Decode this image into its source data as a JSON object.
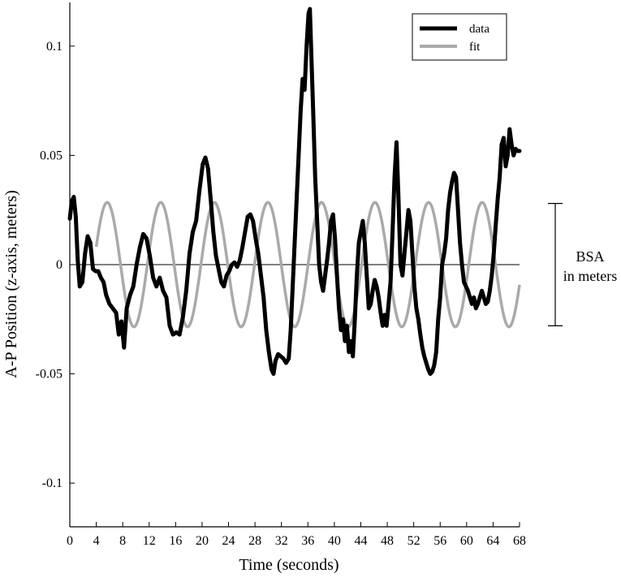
{
  "chart_data": {
    "type": "line",
    "title": "",
    "xlabel": "Time (seconds)",
    "ylabel": "A-P Position (z-axis, meters)",
    "xlim": [
      0,
      68
    ],
    "ylim": [
      -0.12,
      0.12
    ],
    "x_ticks": [
      0,
      4,
      8,
      12,
      16,
      20,
      24,
      28,
      32,
      36,
      40,
      44,
      48,
      52,
      56,
      60,
      64,
      68
    ],
    "x_tick_labels": [
      "0",
      "4",
      "8",
      "12",
      "16",
      "20",
      "24",
      "28",
      "32",
      "36",
      "40",
      "44",
      "48",
      "52",
      "56",
      "60",
      "64",
      "68"
    ],
    "y_ticks": [
      -0.1,
      -0.05,
      0,
      0.05,
      0.1
    ],
    "y_tick_labels": [
      "-0.1",
      "-0.05",
      "0",
      "0.05",
      "0.1"
    ],
    "grid": false,
    "zero_line": true,
    "legend": {
      "placement": "top-right",
      "entries": [
        "data",
        "fit"
      ]
    },
    "series": [
      {
        "name": "data",
        "color": "#000000",
        "points": [
          [
            0,
            0.021
          ],
          [
            0.3,
            0.029
          ],
          [
            0.6,
            0.031
          ],
          [
            0.9,
            0.022
          ],
          [
            1.2,
            0.002
          ],
          [
            1.5,
            -0.01
          ],
          [
            1.9,
            -0.008
          ],
          [
            2.3,
            0.005
          ],
          [
            2.7,
            0.013
          ],
          [
            3.1,
            0.01
          ],
          [
            3.5,
            -0.002
          ],
          [
            3.9,
            -0.003
          ],
          [
            4.3,
            -0.003
          ],
          [
            4.7,
            -0.006
          ],
          [
            5.1,
            -0.008
          ],
          [
            5.5,
            -0.014
          ],
          [
            6.0,
            -0.018
          ],
          [
            6.5,
            -0.02
          ],
          [
            7.0,
            -0.022
          ],
          [
            7.4,
            -0.032
          ],
          [
            7.8,
            -0.026
          ],
          [
            8.2,
            -0.038
          ],
          [
            8.6,
            -0.02
          ],
          [
            9.1,
            -0.014
          ],
          [
            9.6,
            -0.01
          ],
          [
            10.1,
            0.0
          ],
          [
            10.6,
            0.008
          ],
          [
            11.1,
            0.014
          ],
          [
            11.6,
            0.012
          ],
          [
            12.1,
            0.004
          ],
          [
            12.6,
            -0.006
          ],
          [
            13.1,
            -0.01
          ],
          [
            13.6,
            -0.006
          ],
          [
            14.1,
            -0.012
          ],
          [
            14.6,
            -0.015
          ],
          [
            15.1,
            -0.028
          ],
          [
            15.6,
            -0.032
          ],
          [
            16.1,
            -0.031
          ],
          [
            16.6,
            -0.032
          ],
          [
            17.1,
            -0.024
          ],
          [
            17.6,
            -0.012
          ],
          [
            18.1,
            0.005
          ],
          [
            18.6,
            0.015
          ],
          [
            19.1,
            0.02
          ],
          [
            19.6,
            0.034
          ],
          [
            20.1,
            0.046
          ],
          [
            20.5,
            0.049
          ],
          [
            20.9,
            0.044
          ],
          [
            21.3,
            0.03
          ],
          [
            21.7,
            0.015
          ],
          [
            22.1,
            0.004
          ],
          [
            22.5,
            -0.002
          ],
          [
            22.9,
            -0.008
          ],
          [
            23.3,
            -0.01
          ],
          [
            23.7,
            -0.005
          ],
          [
            24.1,
            -0.003
          ],
          [
            24.5,
            0.0
          ],
          [
            24.9,
            0.001
          ],
          [
            25.3,
            -0.001
          ],
          [
            25.7,
            0.002
          ],
          [
            26.1,
            0.008
          ],
          [
            26.5,
            0.015
          ],
          [
            26.9,
            0.022
          ],
          [
            27.3,
            0.023
          ],
          [
            27.7,
            0.02
          ],
          [
            28.1,
            0.012
          ],
          [
            28.5,
            0.005
          ],
          [
            28.9,
            -0.005
          ],
          [
            29.3,
            -0.015
          ],
          [
            29.7,
            -0.03
          ],
          [
            30.1,
            -0.04
          ],
          [
            30.5,
            -0.048
          ],
          [
            30.8,
            -0.05
          ],
          [
            31.1,
            -0.044
          ],
          [
            31.5,
            -0.041
          ],
          [
            31.9,
            -0.042
          ],
          [
            32.3,
            -0.043
          ],
          [
            32.7,
            -0.045
          ],
          [
            33.1,
            -0.043
          ],
          [
            33.4,
            -0.03
          ],
          [
            33.7,
            -0.01
          ],
          [
            34.0,
            0.01
          ],
          [
            34.3,
            0.03
          ],
          [
            34.6,
            0.05
          ],
          [
            34.9,
            0.07
          ],
          [
            35.2,
            0.085
          ],
          [
            35.5,
            0.08
          ],
          [
            35.8,
            0.1
          ],
          [
            36.1,
            0.115
          ],
          [
            36.3,
            0.117
          ],
          [
            36.5,
            0.098
          ],
          [
            36.8,
            0.07
          ],
          [
            37.1,
            0.04
          ],
          [
            37.4,
            0.02
          ],
          [
            37.7,
            0.0
          ],
          [
            38.0,
            -0.008
          ],
          [
            38.3,
            -0.012
          ],
          [
            38.6,
            -0.005
          ],
          [
            38.9,
            0.002
          ],
          [
            39.2,
            0.01
          ],
          [
            39.5,
            0.02
          ],
          [
            39.8,
            0.023
          ],
          [
            40.1,
            0.012
          ],
          [
            40.4,
            -0.005
          ],
          [
            40.7,
            -0.02
          ],
          [
            41.0,
            -0.03
          ],
          [
            41.3,
            -0.025
          ],
          [
            41.6,
            -0.035
          ],
          [
            41.9,
            -0.028
          ],
          [
            42.2,
            -0.04
          ],
          [
            42.5,
            -0.035
          ],
          [
            42.8,
            -0.042
          ],
          [
            43.1,
            -0.025
          ],
          [
            43.4,
            -0.005
          ],
          [
            43.7,
            0.01
          ],
          [
            44.0,
            0.015
          ],
          [
            44.3,
            0.02
          ],
          [
            44.6,
            0.01
          ],
          [
            44.9,
            -0.005
          ],
          [
            45.2,
            -0.02
          ],
          [
            45.5,
            -0.018
          ],
          [
            45.8,
            -0.012
          ],
          [
            46.1,
            -0.007
          ],
          [
            46.4,
            -0.01
          ],
          [
            46.7,
            -0.015
          ],
          [
            47.0,
            -0.022
          ],
          [
            47.3,
            -0.028
          ],
          [
            47.6,
            -0.023
          ],
          [
            47.9,
            -0.028
          ],
          [
            48.2,
            -0.018
          ],
          [
            48.5,
            -0.008
          ],
          [
            48.8,
            0.015
          ],
          [
            49.1,
            0.04
          ],
          [
            49.4,
            0.056
          ],
          [
            49.7,
            0.03
          ],
          [
            50.0,
            0.0
          ],
          [
            50.3,
            -0.005
          ],
          [
            50.6,
            0.005
          ],
          [
            50.9,
            0.015
          ],
          [
            51.2,
            0.025
          ],
          [
            51.5,
            0.02
          ],
          [
            51.8,
            0.005
          ],
          [
            52.1,
            -0.01
          ],
          [
            52.4,
            -0.02
          ],
          [
            52.7,
            -0.025
          ],
          [
            53.0,
            -0.032
          ],
          [
            53.3,
            -0.038
          ],
          [
            53.6,
            -0.042
          ],
          [
            53.9,
            -0.045
          ],
          [
            54.2,
            -0.048
          ],
          [
            54.5,
            -0.05
          ],
          [
            54.8,
            -0.049
          ],
          [
            55.1,
            -0.046
          ],
          [
            55.4,
            -0.04
          ],
          [
            55.7,
            -0.025
          ],
          [
            56.0,
            -0.015
          ],
          [
            56.3,
            0.0
          ],
          [
            56.6,
            0.005
          ],
          [
            56.9,
            0.012
          ],
          [
            57.2,
            0.025
          ],
          [
            57.5,
            0.033
          ],
          [
            57.8,
            0.038
          ],
          [
            58.1,
            0.042
          ],
          [
            58.4,
            0.04
          ],
          [
            58.7,
            0.025
          ],
          [
            59.0,
            0.01
          ],
          [
            59.3,
            0.0
          ],
          [
            59.6,
            -0.008
          ],
          [
            59.9,
            -0.01
          ],
          [
            60.2,
            -0.012
          ],
          [
            60.5,
            -0.015
          ],
          [
            60.8,
            -0.018
          ],
          [
            61.1,
            -0.015
          ],
          [
            61.4,
            -0.02
          ],
          [
            61.7,
            -0.018
          ],
          [
            62.0,
            -0.015
          ],
          [
            62.3,
            -0.012
          ],
          [
            62.6,
            -0.015
          ],
          [
            62.9,
            -0.018
          ],
          [
            63.2,
            -0.017
          ],
          [
            63.5,
            -0.012
          ],
          [
            63.8,
            -0.005
          ],
          [
            64.1,
            0.005
          ],
          [
            64.4,
            0.018
          ],
          [
            64.7,
            0.03
          ],
          [
            65.0,
            0.04
          ],
          [
            65.3,
            0.055
          ],
          [
            65.6,
            0.058
          ],
          [
            65.9,
            0.045
          ],
          [
            66.2,
            0.05
          ],
          [
            66.5,
            0.062
          ],
          [
            66.8,
            0.055
          ],
          [
            67.1,
            0.05
          ],
          [
            67.4,
            0.053
          ],
          [
            67.7,
            0.052
          ],
          [
            68.0,
            0.052
          ]
        ]
      },
      {
        "name": "fit",
        "color": "#aaaaaa",
        "function": "sinusoid",
        "x_start": 4,
        "x_end": 68,
        "amplitude": 0.0285,
        "period": 8.1,
        "phase_offset": 1.6
      }
    ],
    "annotation": {
      "lines": [
        "BSA",
        "in meters"
      ],
      "range": [
        -0.028,
        0.028
      ]
    }
  }
}
